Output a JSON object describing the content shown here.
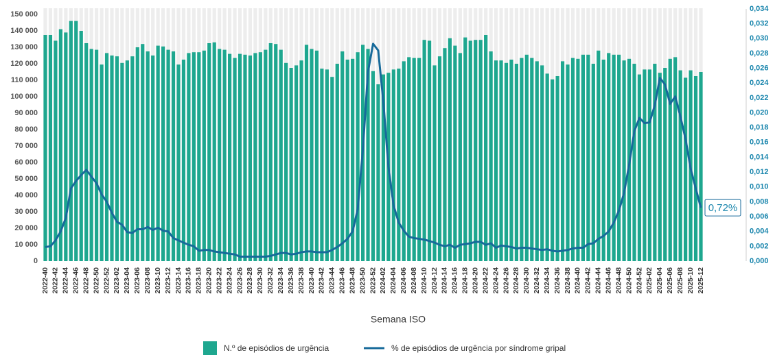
{
  "chart_data": {
    "type": "bar",
    "x_label": "Semana ISO",
    "categories": [
      "2022-40",
      null,
      "2022-42",
      null,
      "2022-44",
      null,
      "2022-46",
      null,
      "2022-48",
      null,
      "2022-50",
      null,
      "2022-52",
      null,
      "2023-02",
      null,
      "2023-04",
      null,
      "2023-06",
      null,
      "2023-08",
      null,
      "2023-10",
      null,
      "2023-12",
      null,
      "2023-14",
      null,
      "2023-16",
      null,
      "2023-18",
      null,
      "2023-20",
      null,
      "2023-22",
      null,
      "2023-24",
      null,
      "2023-26",
      null,
      "2023-28",
      null,
      "2023-30",
      null,
      "2023-32",
      null,
      "2023-34",
      null,
      "2023-36",
      null,
      "2023-38",
      null,
      "2023-40",
      null,
      "2023-42",
      null,
      "2023-44",
      null,
      "2023-46",
      null,
      "2023-48",
      null,
      "2023-50",
      null,
      "2023-52",
      null,
      "2024-02",
      null,
      "2024-04",
      null,
      "2024-06",
      null,
      "2024-08",
      null,
      "2024-10",
      null,
      "2024-12",
      null,
      "2024-14",
      null,
      "2024-16",
      null,
      "2024-18",
      null,
      "2024-20",
      null,
      "2024-22",
      null,
      "2024-24",
      null,
      "2024-26",
      null,
      "2024-28",
      null,
      "2024-30",
      null,
      "2024-32",
      null,
      "2024-34",
      null,
      "2024-36",
      null,
      "2024-38",
      null,
      "2024-40",
      null,
      "2024-42",
      null,
      "2024-44",
      null,
      "2024-46",
      null,
      "2024-48",
      null,
      "2024-50",
      null,
      "2024-52",
      null,
      "2025-02",
      null,
      "2025-04",
      null,
      "2025-06",
      null,
      "2025-08",
      null,
      "2025-10",
      null,
      "2025-12"
    ],
    "series": [
      {
        "name": "N.º de episódios de urgência",
        "type": "bar",
        "axis": "y",
        "color": "#1ea78f",
        "values": [
          137500,
          137500,
          134000,
          141000,
          139000,
          146000,
          146000,
          140000,
          132500,
          129000,
          128500,
          119500,
          126500,
          125000,
          124500,
          120500,
          122000,
          124500,
          130000,
          132000,
          127500,
          125000,
          131000,
          130500,
          128500,
          127500,
          119500,
          122500,
          126500,
          127000,
          127000,
          128000,
          132500,
          133000,
          129000,
          128500,
          126000,
          123500,
          126000,
          125500,
          125000,
          126500,
          127000,
          128500,
          132500,
          132000,
          128500,
          120500,
          117500,
          119000,
          122000,
          131500,
          129000,
          128000,
          117000,
          116500,
          112000,
          120000,
          127500,
          122500,
          123000,
          127000,
          131500,
          129000,
          115500,
          107500,
          113500,
          114500,
          116500,
          117000,
          121500,
          124000,
          123500,
          123500,
          134500,
          134000,
          119000,
          124500,
          129500,
          135500,
          131000,
          126500,
          136000,
          134000,
          134500,
          134500,
          137500,
          127500,
          122000,
          122000,
          120500,
          122500,
          120000,
          123500,
          125500,
          123500,
          121500,
          119000,
          114000,
          110500,
          112500,
          121500,
          119500,
          123500,
          123000,
          125500,
          125500,
          120000,
          128000,
          122500,
          126500,
          125500,
          125500,
          122000,
          123000,
          120000,
          113500,
          116500,
          116500,
          120000,
          114500,
          117500,
          123000,
          124000,
          116000,
          111500,
          116000,
          112500,
          115000
        ]
      },
      {
        "name": "% de episódios de urgência por síndrome gripal",
        "type": "line",
        "axis": "y2",
        "color": "#176a9a",
        "values": [
          0.0019,
          0.002,
          0.0028,
          0.004,
          0.0058,
          0.0098,
          0.0108,
          0.0116,
          0.0123,
          0.0114,
          0.0105,
          0.009,
          0.008,
          0.0065,
          0.0053,
          0.0049,
          0.0039,
          0.0038,
          0.0043,
          0.0043,
          0.0046,
          0.0042,
          0.0045,
          0.0041,
          0.004,
          0.0031,
          0.0028,
          0.0025,
          0.0022,
          0.002,
          0.0014,
          0.0015,
          0.0015,
          0.0013,
          0.0012,
          0.0011,
          0.001,
          0.0009,
          0.0006,
          0.0006,
          0.0006,
          0.0006,
          0.0006,
          0.0006,
          0.0007,
          0.0009,
          0.0011,
          0.0011,
          0.0009,
          0.001,
          0.0012,
          0.0013,
          0.0013,
          0.0012,
          0.0012,
          0.0012,
          0.0015,
          0.0019,
          0.0024,
          0.003,
          0.004,
          0.007,
          0.015,
          0.0255,
          0.0293,
          0.0284,
          0.0215,
          0.0127,
          0.0075,
          0.0052,
          0.0041,
          0.0033,
          0.0031,
          0.003,
          0.0029,
          0.0027,
          0.0025,
          0.0022,
          0.002,
          0.0022,
          0.0018,
          0.0022,
          0.0023,
          0.0024,
          0.0026,
          0.0026,
          0.0022,
          0.0024,
          0.0018,
          0.0021,
          0.002,
          0.0019,
          0.0017,
          0.0018,
          0.0018,
          0.0017,
          0.0016,
          0.0015,
          0.0016,
          0.0014,
          0.0013,
          0.0014,
          0.0015,
          0.0017,
          0.0018,
          0.0018,
          0.0023,
          0.0024,
          0.003,
          0.0034,
          0.004,
          0.0052,
          0.0068,
          0.0092,
          0.013,
          0.0175,
          0.0193,
          0.0186,
          0.0187,
          0.021,
          0.0247,
          0.0238,
          0.0212,
          0.0222,
          0.0195,
          0.0165,
          0.0125,
          0.0098,
          0.0072
        ],
        "value_labels": [
          null,
          null,
          null,
          null,
          null,
          null,
          null,
          null,
          null,
          null,
          null,
          null,
          null,
          null,
          null,
          null,
          null,
          null,
          null,
          null,
          null,
          null,
          null,
          null,
          null,
          null,
          null,
          null,
          null,
          null,
          null,
          null,
          null,
          null,
          null,
          null,
          null,
          null,
          null,
          null,
          null,
          null,
          null,
          null,
          null,
          null,
          null,
          null,
          null,
          null,
          null,
          null,
          null,
          null,
          null,
          null,
          null,
          null,
          null,
          null,
          null,
          null,
          null,
          null,
          null,
          null,
          null,
          null,
          null,
          null,
          null,
          null,
          null,
          null,
          null,
          null,
          null,
          null,
          null,
          null,
          null,
          null,
          null,
          null,
          null,
          null,
          null,
          null,
          null,
          null,
          null,
          null,
          null,
          null,
          null,
          null,
          null,
          null,
          null,
          null,
          null,
          null,
          null,
          null,
          null,
          null,
          null,
          null,
          null,
          null,
          null,
          null,
          null,
          null,
          null,
          null,
          null,
          null,
          null,
          null,
          null,
          null,
          null,
          null,
          null,
          null,
          null,
          null,
          "0,72%"
        ]
      }
    ],
    "ylim": [
      0,
      150000
    ],
    "yticks": [
      0,
      {
        "value": 10000,
        "label": "10 000"
      },
      {
        "value": 20000,
        "label": "20 000"
      },
      {
        "value": 30000,
        "label": "30 000"
      },
      {
        "value": 40000,
        "label": "40 000"
      },
      {
        "value": 50000,
        "label": "50 000"
      },
      {
        "value": 60000,
        "label": "60 000"
      },
      {
        "value": 70000,
        "label": "70 000"
      },
      {
        "value": 80000,
        "label": "80 000"
      },
      {
        "value": 90000,
        "label": "90 000"
      },
      {
        "value": 100000,
        "label": "100 000"
      },
      {
        "value": 110000,
        "label": "110 000"
      },
      {
        "value": 120000,
        "label": "120 000"
      },
      {
        "value": 130000,
        "label": "130 000"
      },
      {
        "value": 140000,
        "label": "140 000"
      },
      {
        "value": 150000,
        "label": "150 000"
      }
    ],
    "y2lim": [
      0,
      0.034
    ],
    "y2ticks": [
      {
        "value": 0,
        "label": "0,000"
      },
      {
        "value": 0.002,
        "label": "0,002"
      },
      {
        "value": 0.004,
        "label": "0,004"
      },
      {
        "value": 0.006,
        "label": "0,006"
      },
      {
        "value": 0.008,
        "label": "0,008"
      },
      {
        "value": 0.01,
        "label": "0,010"
      },
      {
        "value": 0.012,
        "label": "0,012"
      },
      {
        "value": 0.014,
        "label": "0,014"
      },
      {
        "value": 0.016,
        "label": "0,016"
      },
      {
        "value": 0.018,
        "label": "0,018"
      },
      {
        "value": 0.02,
        "label": "0,020"
      },
      {
        "value": 0.022,
        "label": "0,022"
      },
      {
        "value": 0.024,
        "label": "0,024"
      },
      {
        "value": 0.026,
        "label": "0,026"
      },
      {
        "value": 0.028,
        "label": "0,028"
      },
      {
        "value": 0.03,
        "label": "0,030"
      },
      {
        "value": 0.032,
        "label": "0,032"
      },
      {
        "value": 0.034,
        "label": "0,034"
      }
    ],
    "legend": "bottom"
  }
}
